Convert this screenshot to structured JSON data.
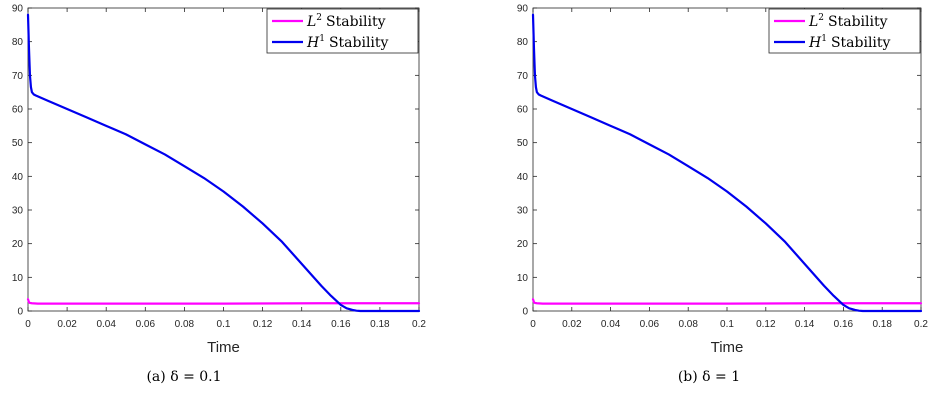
{
  "colors": {
    "l2": "#ff00ff",
    "h1": "#0000ee",
    "axis": "#262626"
  },
  "chart_data": [
    {
      "type": "line",
      "caption": "(a) δ = 0.1",
      "xlabel": "Time",
      "ylabel": "",
      "xlim": [
        0,
        0.2
      ],
      "ylim": [
        0,
        90
      ],
      "xticks": [
        "0",
        "0.02",
        "0.04",
        "0.06",
        "0.08",
        "0.1",
        "0.12",
        "0.14",
        "0.16",
        "0.18",
        "0.2"
      ],
      "yticks": [
        "0",
        "10",
        "20",
        "30",
        "40",
        "50",
        "60",
        "70",
        "80",
        "90"
      ],
      "legend_position": "top-right",
      "series": [
        {
          "name": "L² Stability",
          "name_base": "L",
          "name_sup": "2",
          "name_rest": "Stability",
          "color": "#ff00ff",
          "x": [
            0,
            0.0005,
            0.001,
            0.002,
            0.005,
            0.02,
            0.05,
            0.1,
            0.15,
            0.17,
            0.172,
            0.2
          ],
          "y": [
            3.5,
            2.6,
            2.4,
            2.3,
            2.2,
            2.2,
            2.2,
            2.2,
            2.3,
            2.3,
            2.3,
            2.3
          ]
        },
        {
          "name": "H¹ Stability",
          "name_base": "H",
          "name_sup": "1",
          "name_rest": "Stability",
          "color": "#0000ee",
          "x": [
            0,
            0.0005,
            0.001,
            0.0015,
            0.002,
            0.003,
            0.004,
            0.01,
            0.02,
            0.03,
            0.04,
            0.05,
            0.06,
            0.07,
            0.08,
            0.09,
            0.1,
            0.11,
            0.12,
            0.13,
            0.14,
            0.15,
            0.155,
            0.16,
            0.163,
            0.166,
            0.168,
            0.17,
            0.171,
            0.172,
            0.18,
            0.2
          ],
          "y": [
            88,
            78,
            70,
            66.5,
            65,
            64.3,
            64,
            62.5,
            60,
            57.5,
            55,
            52.5,
            49.5,
            46.5,
            43,
            39.5,
            35.5,
            31,
            26,
            20.5,
            14,
            7.5,
            4.5,
            1.8,
            0.8,
            0.3,
            0.1,
            0,
            0,
            0,
            0,
            0
          ]
        }
      ]
    },
    {
      "type": "line",
      "caption": "(b) δ = 1",
      "xlabel": "Time",
      "ylabel": "",
      "xlim": [
        0,
        0.2
      ],
      "ylim": [
        0,
        90
      ],
      "xticks": [
        "0",
        "0.02",
        "0.04",
        "0.06",
        "0.08",
        "0.1",
        "0.12",
        "0.14",
        "0.16",
        "0.18",
        "0.2"
      ],
      "yticks": [
        "0",
        "10",
        "20",
        "30",
        "40",
        "50",
        "60",
        "70",
        "80",
        "90"
      ],
      "legend_position": "top-right",
      "series": [
        {
          "name": "L² Stability",
          "name_base": "L",
          "name_sup": "2",
          "name_rest": "Stability",
          "color": "#ff00ff",
          "x": [
            0,
            0.0005,
            0.001,
            0.002,
            0.005,
            0.02,
            0.05,
            0.1,
            0.15,
            0.17,
            0.172,
            0.2
          ],
          "y": [
            3.5,
            2.6,
            2.4,
            2.3,
            2.2,
            2.2,
            2.2,
            2.2,
            2.3,
            2.3,
            2.3,
            2.3
          ]
        },
        {
          "name": "H¹ Stability",
          "name_base": "H",
          "name_sup": "1",
          "name_rest": "Stability",
          "color": "#0000ee",
          "x": [
            0,
            0.0005,
            0.001,
            0.0015,
            0.002,
            0.003,
            0.004,
            0.01,
            0.02,
            0.03,
            0.04,
            0.05,
            0.06,
            0.07,
            0.08,
            0.09,
            0.1,
            0.11,
            0.12,
            0.13,
            0.14,
            0.15,
            0.155,
            0.16,
            0.163,
            0.166,
            0.168,
            0.17,
            0.171,
            0.172,
            0.18,
            0.2
          ],
          "y": [
            88,
            78,
            70,
            66.5,
            65,
            64.3,
            64,
            62.5,
            60,
            57.5,
            55,
            52.5,
            49.5,
            46.5,
            43,
            39.5,
            35.5,
            31,
            26,
            20.5,
            14,
            7.5,
            4.5,
            1.8,
            0.8,
            0.3,
            0.1,
            0,
            0,
            0,
            0,
            0
          ]
        }
      ]
    }
  ]
}
